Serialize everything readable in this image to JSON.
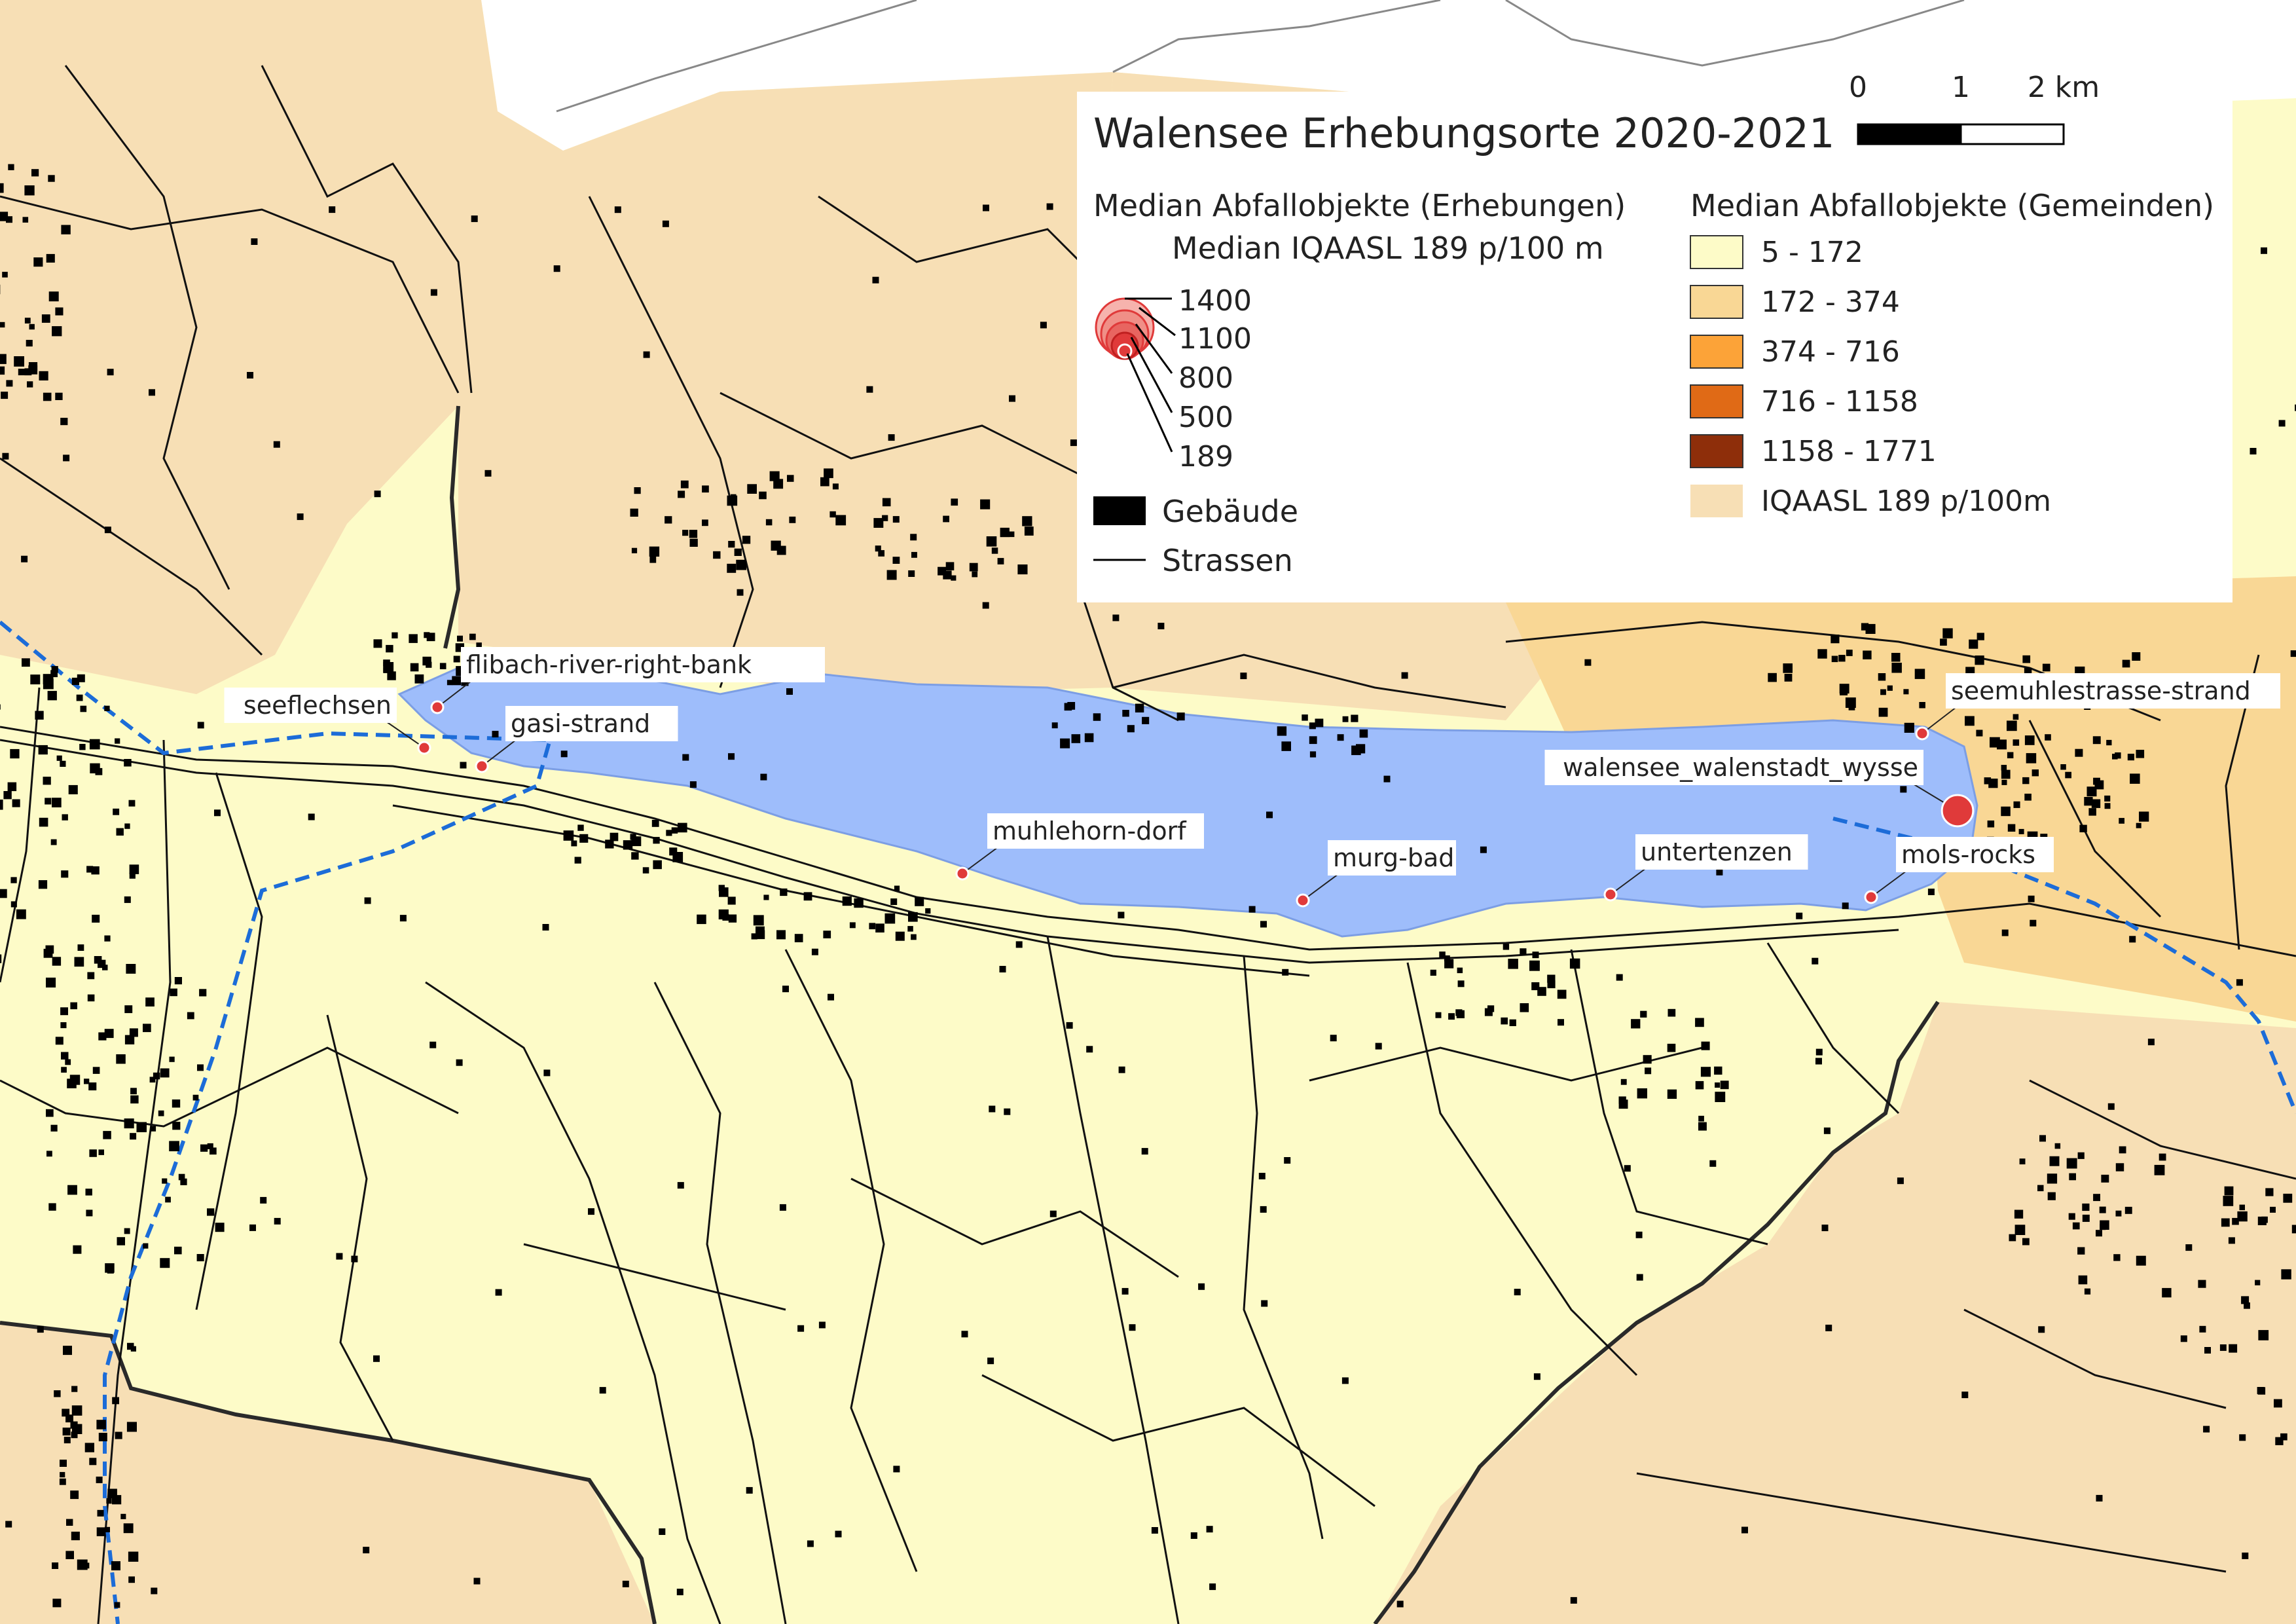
{
  "map": {
    "title": "Walensee Erhebungsorte 2020-2021",
    "colors": {
      "lake": "#9ebdfb",
      "survey_point": "#e03a3a",
      "municipality_low": "#fdfbc8",
      "municipality_mid": "#f9d795",
      "municipality_high": "#fca338",
      "municipality_higher": "#e06a16",
      "municipality_highest": "#8e2e0a",
      "iqaasl": "#f7dfb5",
      "river": "#1c6cd8",
      "building": "#000000",
      "road": "#000000"
    },
    "scale_bar": {
      "labels": [
        "0",
        "1",
        "2 km"
      ]
    },
    "legend": {
      "surveys_heading": "Median Abfallobjekte (Erhebungen)",
      "surveys_subheading": "Median IQAASL 189 p/100 m",
      "bubble_values": [
        "1400",
        "1100",
        "800",
        "500",
        "189"
      ],
      "buildings_label": "Gebäude",
      "roads_label": "Strassen",
      "municipalities_heading": "Median Abfallobjekte (Gemeinden)",
      "classes": [
        {
          "label": "5 - 172",
          "color": "#fdfbc8"
        },
        {
          "label": "172 - 374",
          "color": "#f9d795"
        },
        {
          "label": "374 - 716",
          "color": "#fca338"
        },
        {
          "label": "716 - 1158",
          "color": "#e06a16"
        },
        {
          "label": "1158 - 1771",
          "color": "#8e2e0a"
        },
        {
          "label": "IQAASL 189 p/100m",
          "color": "#f7dfb5"
        }
      ]
    },
    "sites": [
      {
        "name": "flibach-river-right-bank",
        "median": 189
      },
      {
        "name": "seeflechsen",
        "median": 189
      },
      {
        "name": "gasi-strand",
        "median": 189
      },
      {
        "name": "muhlehorn-dorf",
        "median": 189
      },
      {
        "name": "murg-bad",
        "median": 189
      },
      {
        "name": "untertenzen",
        "median": 189
      },
      {
        "name": "mols-rocks",
        "median": 189
      },
      {
        "name": "seemuhlestrasse-strand",
        "median": 189
      },
      {
        "name": "walensee_walenstadt_wysse",
        "median": 800
      }
    ]
  }
}
